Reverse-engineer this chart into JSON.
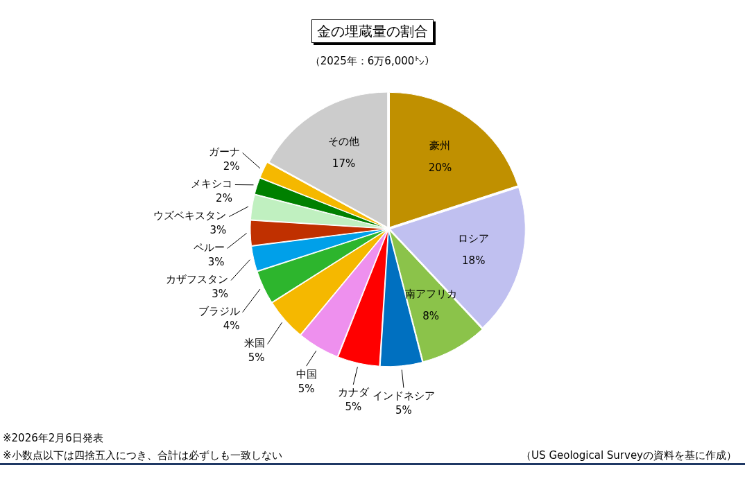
{
  "chart_data": {
    "type": "pie",
    "title": "金の埋蔵量の割合",
    "subtitle": "（2025年：6万6,000㌧）",
    "categories": [
      "豪州",
      "ロシア",
      "南アフリカ",
      "インドネシア",
      "カナダ",
      "中国",
      "米国",
      "ブラジル",
      "カザフスタン",
      "ペルー",
      "ウズベキスタン",
      "メキシコ",
      "ガーナ",
      "その他"
    ],
    "values": [
      20,
      18,
      8,
      5,
      5,
      5,
      5,
      4,
      3,
      3,
      3,
      2,
      2,
      17
    ],
    "colors": [
      "#c09000",
      "#c0c0f0",
      "#8bc34a",
      "#0070c0",
      "#ff0000",
      "#ee90ee",
      "#f5b800",
      "#2db52d",
      "#00a0e9",
      "#c03000",
      "#c0f0c0",
      "#008000",
      "#f5b800",
      "#cccccc"
    ],
    "value_labels": [
      "20%",
      "18%",
      "8%",
      "5%",
      "5%",
      "5%",
      "5%",
      "4%",
      "3%",
      "3%",
      "3%",
      "2%",
      "2%",
      "17%"
    ],
    "annotations": [
      "※2026年2月6日発表",
      "※小数点以下は四捨五入につき、合計は必ずしも一致しない",
      "（US Geological Surveyの資料を基に作成）"
    ]
  }
}
